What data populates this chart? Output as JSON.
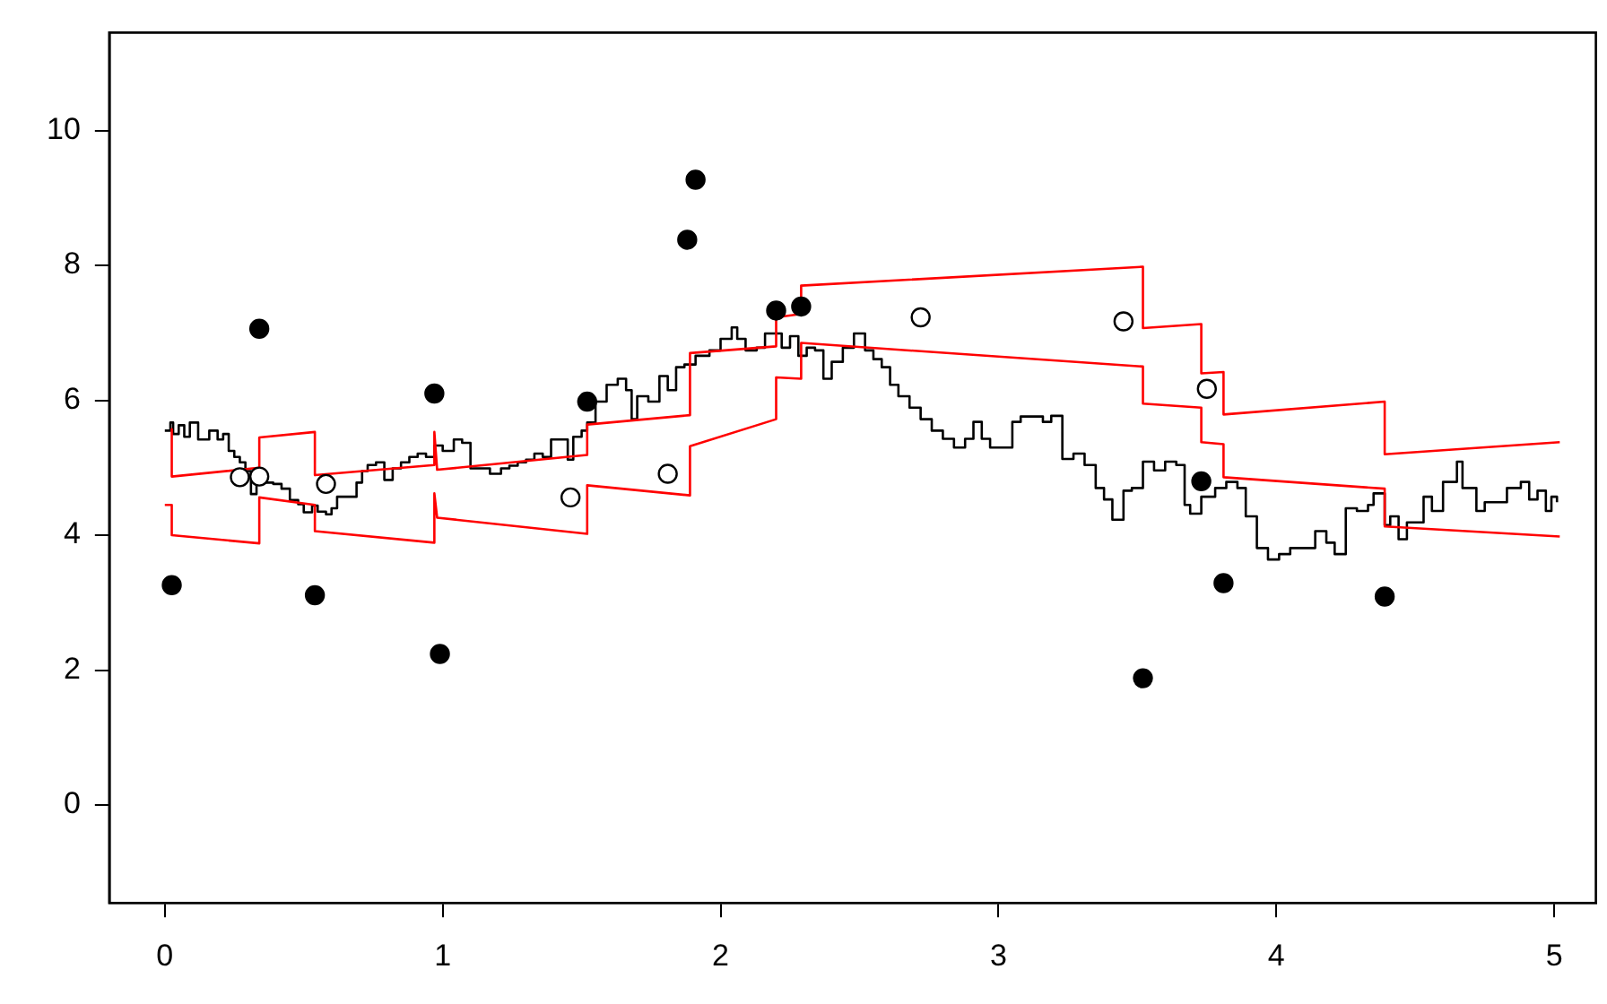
{
  "chart_data": {
    "type": "line",
    "xlim": [
      -0.2,
      5.15
    ],
    "ylim": [
      -1.45,
      11.45
    ],
    "xticks": [
      0,
      1,
      2,
      3,
      4,
      5
    ],
    "yticks": [
      0,
      2,
      4,
      6,
      8,
      10
    ],
    "grid": false,
    "legend": false,
    "series": [
      {
        "type": "line",
        "color": "#ff0000",
        "marker": "none",
        "x": [
          0.025,
          0.025,
          0.34,
          0.34,
          0.54,
          0.54,
          0.97,
          0.97,
          0.98,
          1.52,
          1.52,
          1.89,
          1.89,
          2.2,
          2.2,
          2.29,
          2.29,
          3.52,
          3.52,
          3.73,
          3.73,
          3.81,
          3.81,
          4.39,
          4.39,
          5.02
        ],
        "values": [
          5.57,
          4.87,
          5.0,
          5.45,
          5.53,
          4.89,
          5.04,
          5.53,
          4.97,
          5.19,
          5.64,
          5.78,
          6.7,
          6.8,
          7.23,
          7.28,
          7.7,
          7.98,
          7.07,
          7.13,
          6.4,
          6.42,
          5.79,
          5.98,
          5.2,
          5.38
        ]
      },
      {
        "type": "line",
        "color": "#ff0000",
        "marker": "none",
        "x": [
          0.0,
          0.025,
          0.025,
          0.34,
          0.34,
          0.54,
          0.54,
          0.97,
          0.97,
          0.98,
          1.52,
          1.52,
          1.89,
          1.89,
          2.2,
          2.2,
          2.29,
          2.29,
          3.52,
          3.52,
          3.73,
          3.73,
          3.81,
          3.81,
          4.39,
          4.39,
          5.02
        ],
        "values": [
          4.45,
          4.45,
          4.0,
          3.88,
          4.56,
          4.45,
          4.06,
          3.89,
          4.62,
          4.26,
          4.02,
          4.74,
          4.59,
          5.32,
          5.72,
          6.34,
          6.32,
          6.85,
          6.5,
          5.95,
          5.89,
          5.38,
          5.35,
          4.86,
          4.69,
          4.13,
          3.98
        ]
      },
      {
        "type": "step",
        "color": "#000000",
        "marker": "none",
        "x": [
          0.0,
          0.02,
          0.03,
          0.05,
          0.07,
          0.09,
          0.12,
          0.16,
          0.19,
          0.21,
          0.23,
          0.25,
          0.27,
          0.29,
          0.31,
          0.33,
          0.36,
          0.39,
          0.42,
          0.45,
          0.48,
          0.5,
          0.53,
          0.55,
          0.58,
          0.6,
          0.62,
          0.66,
          0.69,
          0.71,
          0.73,
          0.76,
          0.79,
          0.82,
          0.85,
          0.88,
          0.91,
          0.94,
          0.97,
          1.0,
          1.04,
          1.07,
          1.1,
          1.13,
          1.17,
          1.21,
          1.24,
          1.27,
          1.3,
          1.33,
          1.36,
          1.39,
          1.43,
          1.45,
          1.47,
          1.5,
          1.52,
          1.55,
          1.59,
          1.63,
          1.66,
          1.68,
          1.7,
          1.74,
          1.78,
          1.81,
          1.84,
          1.87,
          1.91,
          1.96,
          2.0,
          2.04,
          2.06,
          2.09,
          2.13,
          2.16,
          2.19,
          2.22,
          2.25,
          2.28,
          2.31,
          2.34,
          2.37,
          2.4,
          2.44,
          2.48,
          2.52,
          2.55,
          2.58,
          2.61,
          2.64,
          2.68,
          2.72,
          2.76,
          2.8,
          2.84,
          2.88,
          2.91,
          2.94,
          2.97,
          3.01,
          3.05,
          3.08,
          3.12,
          3.16,
          3.19,
          3.23,
          3.27,
          3.31,
          3.35,
          3.38,
          3.41,
          3.45,
          3.48,
          3.52,
          3.56,
          3.6,
          3.64,
          3.67,
          3.69,
          3.73,
          3.78,
          3.82,
          3.86,
          3.89,
          3.93,
          3.97,
          4.01,
          4.05,
          4.1,
          4.14,
          4.18,
          4.21,
          4.25,
          4.29,
          4.33,
          4.35,
          4.39,
          4.41,
          4.44,
          4.47,
          4.53,
          4.56,
          4.6,
          4.65,
          4.67,
          4.72,
          4.75,
          4.79,
          4.83,
          4.88,
          4.91,
          4.94,
          4.97,
          4.99,
          5.01
        ],
        "values": [
          5.55,
          5.67,
          5.5,
          5.63,
          5.46,
          5.67,
          5.42,
          5.55,
          5.42,
          5.5,
          5.25,
          5.16,
          5.08,
          4.95,
          4.61,
          4.82,
          4.78,
          4.76,
          4.69,
          4.52,
          4.46,
          4.34,
          4.44,
          4.35,
          4.31,
          4.4,
          4.57,
          4.57,
          4.78,
          4.95,
          5.04,
          5.08,
          4.82,
          4.99,
          5.08,
          5.16,
          5.21,
          5.16,
          5.33,
          5.25,
          5.42,
          5.37,
          4.99,
          4.99,
          4.91,
          4.99,
          5.03,
          5.08,
          5.12,
          5.21,
          5.16,
          5.42,
          5.42,
          5.12,
          5.46,
          5.55,
          5.67,
          5.98,
          6.23,
          6.32,
          6.15,
          5.72,
          6.06,
          5.98,
          6.36,
          6.15,
          6.49,
          6.53,
          6.66,
          6.74,
          6.91,
          7.08,
          6.91,
          6.74,
          6.78,
          6.99,
          6.99,
          6.78,
          6.95,
          6.66,
          6.78,
          6.74,
          6.32,
          6.57,
          6.78,
          6.99,
          6.74,
          6.61,
          6.49,
          6.23,
          6.06,
          5.89,
          5.72,
          5.55,
          5.43,
          5.3,
          5.43,
          5.68,
          5.43,
          5.3,
          5.3,
          5.68,
          5.76,
          5.76,
          5.68,
          5.77,
          5.13,
          5.21,
          5.04,
          4.7,
          4.53,
          4.23,
          4.66,
          4.7,
          5.09,
          4.96,
          5.09,
          5.04,
          4.45,
          4.32,
          4.57,
          4.7,
          4.79,
          4.7,
          4.28,
          3.81,
          3.64,
          3.72,
          3.81,
          3.81,
          4.06,
          3.89,
          3.72,
          4.4,
          4.36,
          4.45,
          4.62,
          4.15,
          4.28,
          3.94,
          4.19,
          4.57,
          4.36,
          4.79,
          5.09,
          4.7,
          4.36,
          4.49,
          4.49,
          4.7,
          4.79,
          4.53,
          4.66,
          4.36,
          4.57,
          4.49
        ]
      },
      {
        "type": "scatter",
        "color": "#000000",
        "marker": "circle",
        "x": [
          0.025,
          0.34,
          0.54,
          0.97,
          0.99,
          1.52,
          1.88,
          1.91,
          2.2,
          2.29,
          3.52,
          3.73,
          3.81,
          4.39
        ],
        "values": [
          3.26,
          7.06,
          3.11,
          6.1,
          2.24,
          5.98,
          8.38,
          9.27,
          7.33,
          7.39,
          1.88,
          4.8,
          3.29,
          3.09
        ]
      },
      {
        "type": "scatter",
        "color": "#ffffff",
        "marker": "circle",
        "x": [
          0.27,
          0.34,
          0.58,
          1.46,
          1.81,
          2.72,
          3.45,
          3.75
        ],
        "values": [
          4.86,
          4.87,
          4.76,
          4.56,
          4.91,
          7.23,
          7.17,
          6.17
        ]
      }
    ]
  }
}
